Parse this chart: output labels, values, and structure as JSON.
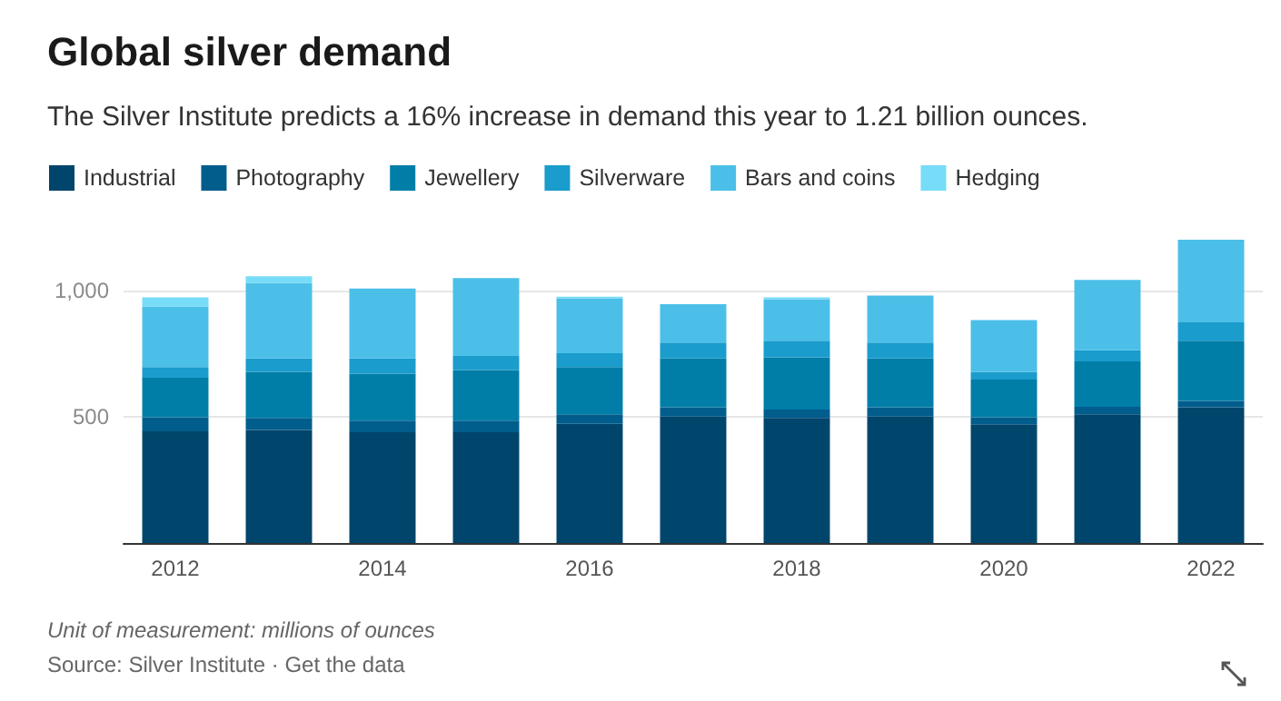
{
  "chart_data": {
    "type": "bar",
    "title": "Global silver demand",
    "subtitle": "The Silver Institute predicts a 16% increase in demand this year to 1.21 billion ounces.",
    "annotations": [
      "Unit of measurement: millions of ounces",
      "Source: Silver Institute · Get the data"
    ],
    "categories": [
      "2012",
      null,
      "2014",
      null,
      "2016",
      null,
      "2018",
      null,
      "2020",
      null,
      "2022"
    ],
    "stacked": true,
    "ylim": [
      0,
      1200
    ],
    "legend": "top left",
    "grid": "y",
    "yticks": [
      500,
      {
        "value": 1000,
        "label": "1,000"
      }
    ],
    "series": [
      {
        "name": "Industrial",
        "color": "#00456b",
        "values": [
          442,
          447,
          438,
          438,
          472,
          500,
          495,
          500,
          470,
          509,
          537
        ]
      },
      {
        "name": "Photography",
        "color": "#005d8c",
        "values": [
          56,
          48,
          46,
          46,
          37,
          37,
          33,
          37,
          28,
          30,
          25
        ]
      },
      {
        "name": "Jewellery",
        "color": "#007ea8",
        "values": [
          156,
          182,
          186,
          200,
          187,
          193,
          207,
          193,
          149,
          180,
          238
        ]
      },
      {
        "name": "Silverware",
        "color": "#1a9ccc",
        "values": [
          42,
          53,
          60,
          56,
          55,
          63,
          65,
          63,
          30,
          44,
          73
        ]
      },
      {
        "name": "Bars and coins",
        "color": "#4bbfe8",
        "values": [
          239,
          298,
          277,
          308,
          217,
          152,
          165,
          186,
          205,
          278,
          327
        ]
      },
      {
        "name": "Hedging",
        "color": "#77dcf7",
        "values": [
          37,
          27,
          0,
          0,
          7,
          0,
          7,
          0,
          0,
          0,
          0
        ]
      }
    ]
  }
}
